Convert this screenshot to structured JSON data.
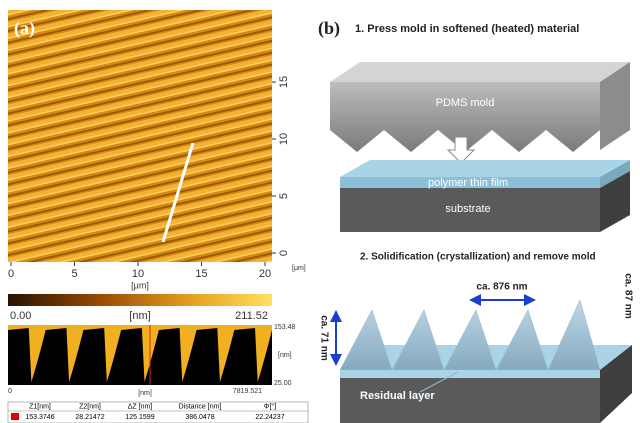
{
  "panel_a": {
    "label": "(a)",
    "image_yticks": [
      "0",
      "5",
      "10",
      "15"
    ],
    "image_xticks": [
      "0",
      "5",
      "10",
      "15",
      "20"
    ],
    "x_unit": "[μm]",
    "y_unit": "[μm]",
    "colorbar": {
      "min": "0.00",
      "unit": "[nm]",
      "max": "211.52"
    },
    "profile": {
      "y_top": "153.48",
      "y_unit": "[nm]",
      "y_bottom": "25.00",
      "x_start": "0",
      "x_unit": "[nm]",
      "x_end": "7819.521"
    },
    "table": {
      "header": [
        "Z1[nm]",
        "Z2[nm]",
        "ΔZ [nm]",
        "Distance [nm]",
        "Φ[°]"
      ],
      "rows": [
        [
          "153.3746",
          "28.21472",
          "125.1599",
          "386.0478",
          "22.24237"
        ]
      ]
    }
  },
  "panel_b": {
    "label": "(b)",
    "step1_title": "1. Press mold in softened (heated) material",
    "mold_label": "PDMS mold",
    "film_label": "polymer thin film",
    "substrate_label": "substrate",
    "step2_title": "2. Solidification (crystallization) and remove mold",
    "period_label": "ca. 876 nm",
    "right_height_label": "ca. 87 nm",
    "left_height_label": "ca. 71 nm",
    "residual_label": "Residual layer"
  }
}
